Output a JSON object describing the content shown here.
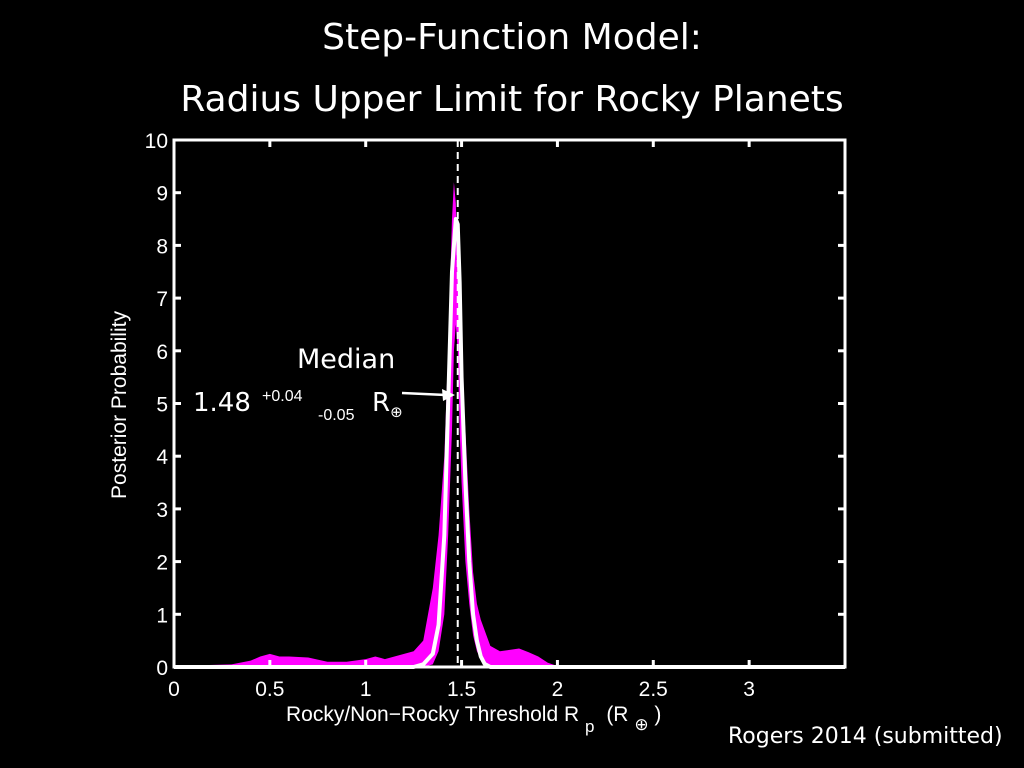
{
  "slide": {
    "title_line1": "Step-Function Model:",
    "title_line2": "Radius Upper Limit for Rocky Planets",
    "credit": "Rogers 2014 (submitted)"
  },
  "annotation": {
    "label": "Median",
    "value": "1.48",
    "plus": "+0.04",
    "minus": "-0.05",
    "unit": "R",
    "unit_sub": "⊕"
  },
  "colors": {
    "background": "#000000",
    "band": "#ff00ff",
    "curve": "#ffffff",
    "axes": "#ffffff"
  },
  "chart_data": {
    "type": "area",
    "xlabel": "Rocky/Non−Rocky Threshold R",
    "xlabel_sub": "p",
    "xlabel_unit": "(R",
    "xlabel_unit_sub": "⊕",
    "xlabel_close": ")",
    "ylabel": "Posterior Probability",
    "xlim": [
      0,
      3.5
    ],
    "ylim": [
      0,
      10
    ],
    "xticks": [
      0,
      0.5,
      1,
      1.5,
      2,
      2.5,
      3
    ],
    "xtick_labels": [
      "0",
      "0.5",
      "1",
      "1.5",
      "2",
      "2.5",
      "3"
    ],
    "yticks": [
      0,
      1,
      2,
      3,
      4,
      5,
      6,
      7,
      8,
      9,
      10
    ],
    "ytick_labels": [
      "0",
      "1",
      "2",
      "3",
      "4",
      "5",
      "6",
      "7",
      "8",
      "9",
      "10"
    ],
    "median_line_x": 1.48,
    "series": [
      {
        "kind": "band",
        "x": [
          0,
          0.3,
          0.4,
          0.45,
          0.5,
          0.55,
          0.6,
          0.7,
          0.8,
          0.9,
          1.0,
          1.05,
          1.1,
          1.15,
          1.2,
          1.25,
          1.3,
          1.35,
          1.38,
          1.41,
          1.43,
          1.45,
          1.46,
          1.47,
          1.48,
          1.49,
          1.5,
          1.52,
          1.54,
          1.56,
          1.58,
          1.6,
          1.65,
          1.7,
          1.8,
          1.85,
          1.9,
          1.95,
          2.0,
          3.5
        ],
        "upper": [
          0.02,
          0.05,
          0.12,
          0.2,
          0.25,
          0.2,
          0.2,
          0.18,
          0.1,
          0.1,
          0.15,
          0.2,
          0.15,
          0.2,
          0.25,
          0.3,
          0.5,
          1.5,
          2.5,
          4.0,
          6.0,
          8.5,
          9.2,
          8.8,
          7.5,
          6.0,
          5.5,
          4.5,
          3.0,
          1.8,
          1.2,
          0.9,
          0.4,
          0.3,
          0.35,
          0.28,
          0.2,
          0.08,
          0.02,
          0.0
        ],
        "lower": [
          0,
          0,
          0,
          0,
          0,
          0,
          0,
          0,
          0,
          0,
          0,
          0,
          0,
          0,
          0,
          0,
          0,
          0.05,
          0.3,
          1.0,
          2.5,
          4.5,
          6.0,
          6.5,
          6.0,
          4.5,
          3.5,
          2.0,
          1.2,
          0.6,
          0.3,
          0.15,
          0,
          0,
          0,
          0,
          0,
          0,
          0,
          0
        ]
      },
      {
        "kind": "line",
        "x": [
          0,
          1.25,
          1.3,
          1.35,
          1.38,
          1.41,
          1.43,
          1.45,
          1.47,
          1.48,
          1.49,
          1.5,
          1.52,
          1.54,
          1.56,
          1.58,
          1.6,
          1.62,
          1.65,
          3.5
        ],
        "y": [
          0,
          0,
          0.05,
          0.25,
          0.8,
          2.5,
          5.0,
          7.5,
          8.5,
          8.4,
          7.3,
          5.5,
          3.5,
          2.0,
          1.0,
          0.5,
          0.2,
          0.06,
          0,
          0
        ]
      }
    ]
  }
}
